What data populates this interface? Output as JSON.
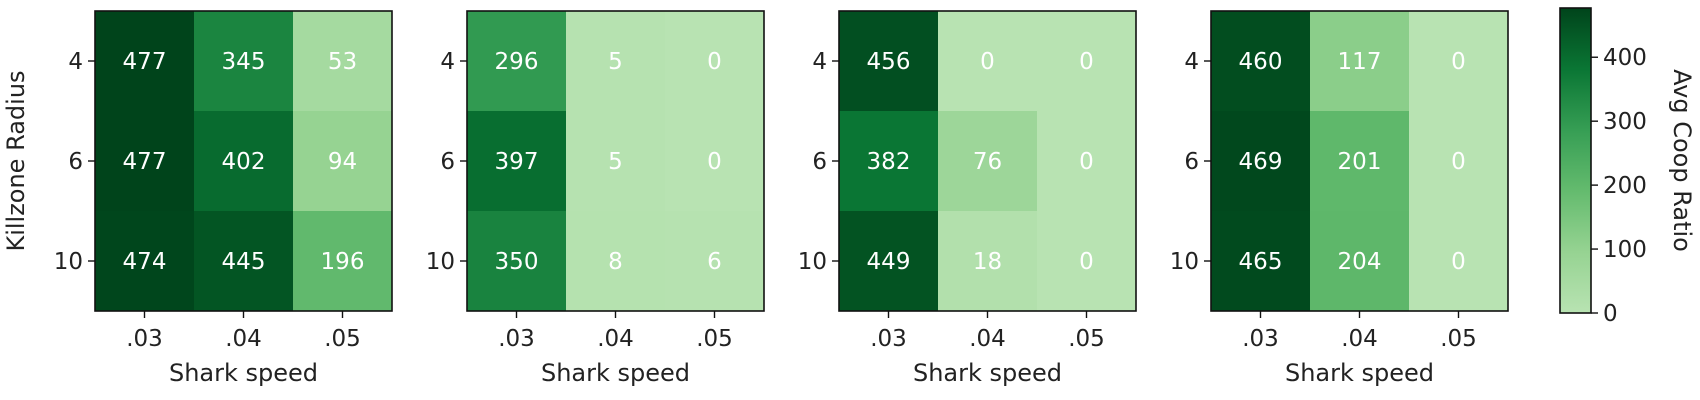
{
  "chart_data": [
    {
      "type": "heatmap",
      "xlabel": "Shark speed",
      "ylabel": "Killzone Radius",
      "x_categories": [
        ".03",
        ".04",
        ".05"
      ],
      "y_categories": [
        "4",
        "6",
        "10"
      ],
      "values": [
        [
          477,
          345,
          53
        ],
        [
          477,
          402,
          94
        ],
        [
          474,
          445,
          196
        ]
      ]
    },
    {
      "type": "heatmap",
      "xlabel": "Shark speed",
      "ylabel": "",
      "x_categories": [
        ".03",
        ".04",
        ".05"
      ],
      "y_categories": [
        "4",
        "6",
        "10"
      ],
      "values": [
        [
          296,
          5,
          0
        ],
        [
          397,
          5,
          0
        ],
        [
          350,
          8,
          6
        ]
      ]
    },
    {
      "type": "heatmap",
      "xlabel": "Shark speed",
      "ylabel": "",
      "x_categories": [
        ".03",
        ".04",
        ".05"
      ],
      "y_categories": [
        "4",
        "6",
        "10"
      ],
      "values": [
        [
          456,
          0,
          0
        ],
        [
          382,
          76,
          0
        ],
        [
          449,
          18,
          0
        ]
      ]
    },
    {
      "type": "heatmap",
      "xlabel": "Shark speed",
      "ylabel": "",
      "x_categories": [
        ".03",
        ".04",
        ".05"
      ],
      "y_categories": [
        "4",
        "6",
        "10"
      ],
      "values": [
        [
          460,
          117,
          0
        ],
        [
          469,
          201,
          0
        ],
        [
          465,
          204,
          0
        ]
      ]
    }
  ],
  "colorbar": {
    "label": "Avg Coop Ratio",
    "colormap": "Greens",
    "vmin": 0,
    "vmax": 477,
    "ticks": [
      0,
      100,
      200,
      300,
      400
    ],
    "tick_labels": [
      "0",
      "100",
      "200",
      "300",
      "400"
    ]
  },
  "colors": {
    "low": "#b8e3b2",
    "high": "#00441b",
    "text": "#ffffff"
  }
}
